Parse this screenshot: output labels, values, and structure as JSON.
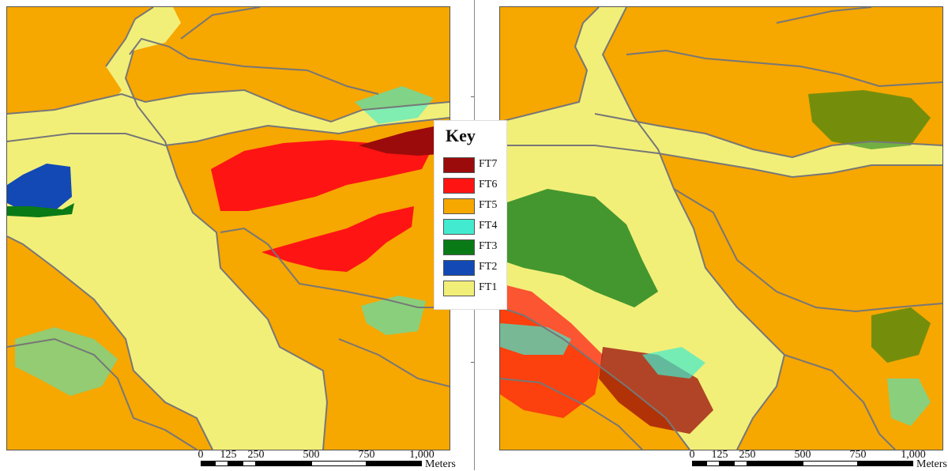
{
  "legend": {
    "title": "Key",
    "items": [
      {
        "label": "FT7",
        "color": "#9b0b0b"
      },
      {
        "label": "FT6",
        "color": "#ff1414"
      },
      {
        "label": "FT5",
        "color": "#f6a700"
      },
      {
        "label": "FT4",
        "color": "#42ebcf"
      },
      {
        "label": "FT3",
        "color": "#0a7a16"
      },
      {
        "label": "FT2",
        "color": "#1249b5"
      },
      {
        "label": "FT1",
        "color": "#f2ef79"
      }
    ]
  },
  "scalebar": {
    "ticks": [
      "0",
      "125",
      "250",
      "500",
      "750",
      "1,000"
    ],
    "units": "Meters"
  },
  "maps": [
    {
      "name": "left-map"
    },
    {
      "name": "right-map"
    }
  ]
}
